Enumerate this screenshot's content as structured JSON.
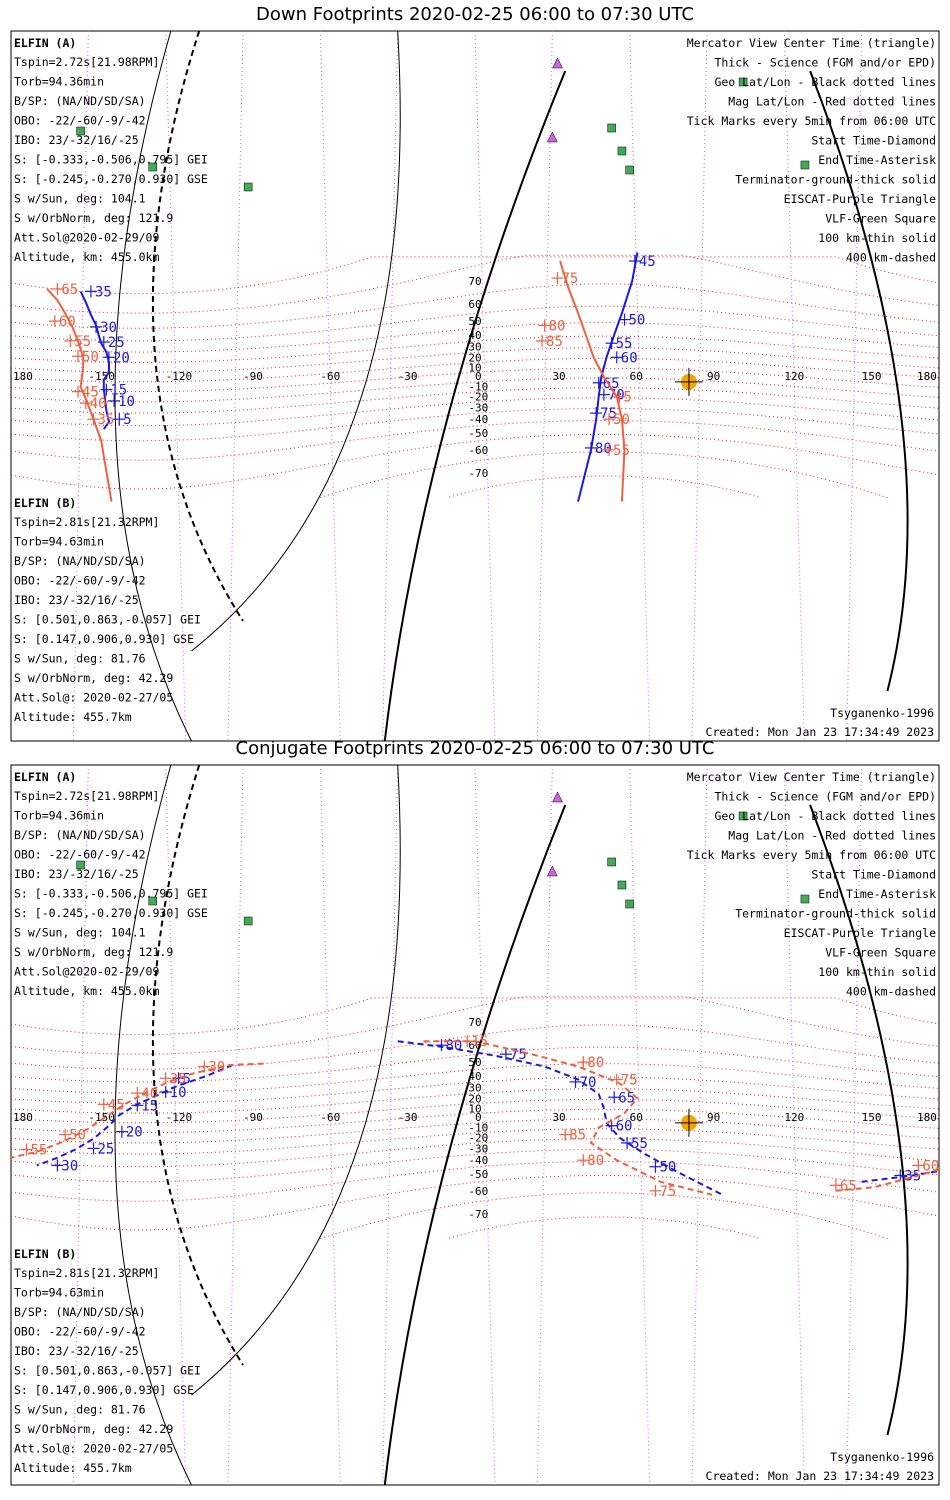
{
  "colors": {
    "elfin_a": "#1a1adc",
    "elfin_b": "#ee6040",
    "geo_grid": "#000000",
    "mag_grid": "#dd2222",
    "eiscat": "#cc66dd",
    "vlf": "#44aa55",
    "sun": "#f2a400",
    "coast": "#b8b8b8"
  },
  "panels": [
    {
      "title": "Down Footprints 2020-02-25 06:00 to 07:30 UTC",
      "kind": "down",
      "elfin_a": {
        "name": "ELFIN (A)",
        "lines": [
          "Tspin=2.72s[21.98RPM]",
          "Torb=94.36min",
          "B/SP: (NA/ND/SD/SA)",
          "OBO: -22/-60/-9/-42",
          "IBO: 23/-32/16/-25",
          "S: [-0.333,-0.506,0.795] GEI",
          "S: [-0.245,-0.270,0.930] GSE",
          "S w/Sun, deg: 104.1",
          "S w/OrbNorm, deg: 121.9",
          "Att.Sol@2020-02-29/09",
          "Altitude, km: 455.0km"
        ]
      },
      "elfin_b": {
        "name": "ELFIN (B)",
        "lines": [
          "Tspin=2.81s[21.32RPM]",
          "Torb=94.63min",
          "B/SP: (NA/ND/SD/SA)",
          "OBO: -22/-60/-9/-42",
          "IBO: 23/-32/16/-25",
          "S: [0.501,0.863,-0.057] GEI",
          "S: [0.147,0.906,0.930] GSE",
          "S w/Sun, deg: 81.76",
          "S w/OrbNorm, deg: 42.29",
          "Att.Sol@: 2020-02-27/05",
          "Altitude: 455.7km"
        ]
      },
      "legend": [
        "Mercator View Center Time (triangle)",
        "Thick - Science (FGM and/or EPD)",
        "Geo Lat/Lon - Black dotted lines",
        "Mag Lat/Lon - Red dotted lines",
        "Tick Marks every 5min from 06:00 UTC",
        "Start Time-Diamond",
        "End Time-Asterisk",
        "Terminator-ground-thick solid",
        "EISCAT-Purple Triangle",
        "VLF-Green Square",
        "100 km-thin solid",
        "400 km-dashed"
      ],
      "model": "Tsyganenko-1996",
      "created": "Created: Mon Jan 23 17:34:49 2023",
      "lon_ticks": [
        "180",
        "-150",
        "-120",
        "-90",
        "-60",
        "-30",
        "0",
        "30",
        "60",
        "90",
        "120",
        "150",
        "180"
      ],
      "lat_ticks": [
        "70",
        "60",
        "50",
        "40",
        "30",
        "20",
        "10",
        "-10",
        "-20",
        "-30",
        "-40",
        "-50",
        "-60",
        "-70"
      ]
    },
    {
      "title": "Conjugate Footprints 2020-02-25 06:00 to 07:30 UTC",
      "kind": "conj",
      "elfin_a": {
        "name": "ELFIN (A)",
        "lines": [
          "Tspin=2.72s[21.98RPM]",
          "Torb=94.36min",
          "B/SP: (NA/ND/SD/SA)",
          "OBO: -22/-60/-9/-42",
          "IBO: 23/-32/16/-25",
          "S: [-0.333,-0.506,0.795] GEI",
          "S: [-0.245,-0.270,0.930] GSE",
          "S w/Sun, deg: 104.1",
          "S w/OrbNorm, deg: 121.9",
          "Att.Sol@2020-02-29/09",
          "Altitude, km: 455.0km"
        ]
      },
      "elfin_b": {
        "name": "ELFIN (B)",
        "lines": [
          "Tspin=2.81s[21.32RPM]",
          "Torb=94.63min",
          "B/SP: (NA/ND/SD/SA)",
          "OBO: -22/-60/-9/-42",
          "IBO: 23/-32/16/-25",
          "S: [0.501,0.863,-0.057] GEI",
          "S: [0.147,0.906,0.930] GSE",
          "S w/Sun, deg: 81.76",
          "S w/OrbNorm, deg: 42.29",
          "Att.Sol@: 2020-02-27/05",
          "Altitude: 455.7km"
        ]
      },
      "legend": [
        "Mercator View Center Time (triangle)",
        "Thick - Science (FGM and/or EPD)",
        "Geo Lat/Lon - Black dotted lines",
        "Mag Lat/Lon - Red dotted lines",
        "Tick Marks every 5min from 06:00 UTC",
        "Start Time-Diamond",
        "End Time-Asterisk",
        "Terminator-ground-thick solid",
        "EISCAT-Purple Triangle",
        "VLF-Green Square",
        "100 km-thin solid",
        "400 km-dashed"
      ],
      "model": "Tsyganenko-1996",
      "created": "Created: Mon Jan 23 17:34:49 2023",
      "lon_ticks": [
        "180",
        "-150",
        "-120",
        "-90",
        "-60",
        "-30",
        "0",
        "30",
        "60",
        "90",
        "120",
        "150",
        "180"
      ],
      "lat_ticks": [
        "70",
        "60",
        "50",
        "40",
        "30",
        "20",
        "10",
        "-10",
        "-20",
        "-30",
        "-40",
        "-50",
        "-60",
        "-70"
      ]
    }
  ],
  "chart_data": [
    {
      "type": "map",
      "title": "Down Footprints 2020-02-25 06:00 to 07:30 UTC",
      "projection": "Mercator",
      "xlim": [
        -180,
        180
      ],
      "ylim": [
        -78,
        78
      ],
      "series": [
        {
          "name": "ELFIN (A)",
          "color": "#1a1adc",
          "style": "solid",
          "points": [
            [
              -144,
              -47.5
            ],
            [
              -142,
              -42
            ],
            [
              -143,
              -33
            ],
            [
              -144,
              -12
            ],
            [
              -144,
              -3
            ],
            [
              -142,
              5
            ],
            [
              -142,
              15
            ],
            [
              -143,
              25
            ],
            [
              -145,
              33
            ],
            [
              -146,
              40
            ],
            [
              -147,
              47
            ],
            [
              -149,
              54
            ],
            [
              -151,
              61
            ],
            [
              -153,
              66
            ]
          ],
          "labels": [
            [
              "35",
              -149,
              66
            ],
            [
              "30",
              -147,
              46
            ],
            [
              "25",
              -144,
              34
            ],
            [
              "20",
              -142,
              20
            ],
            [
              "15",
              -143,
              -13
            ],
            [
              "10",
              -140,
              -24
            ],
            [
              "5",
              -138,
              -40
            ]
          ]
        },
        {
          "name": "ELFIN (A) dayside",
          "color": "#1a1adc",
          "style": "solid",
          "points": [
            [
              40,
              -78
            ],
            [
              45,
              -60
            ],
            [
              47,
              -40
            ],
            [
              48,
              -20
            ],
            [
              49,
              0
            ],
            [
              51,
              20
            ],
            [
              54,
              40
            ],
            [
              57,
              55
            ],
            [
              61,
              70
            ],
            [
              63,
              78
            ]
          ],
          "labels": [
            [
              "45",
              62,
              76
            ],
            [
              "50",
              58,
              51
            ],
            [
              "55",
              53,
              33
            ],
            [
              "60",
              55,
              20
            ],
            [
              "65",
              48,
              -6
            ],
            [
              "70",
              50,
              -18
            ],
            [
              "75",
              47,
              -35
            ],
            [
              "80",
              45,
              -59
            ]
          ]
        },
        {
          "name": "ELFIN (B)",
          "color": "#ee6040",
          "style": "solid",
          "points": [
            [
              -141,
              -78
            ],
            [
              -145,
              -55
            ],
            [
              -148,
              -40
            ],
            [
              -151,
              -22
            ],
            [
              -153,
              -10
            ],
            [
              -152,
              10
            ],
            [
              -152,
              20
            ],
            [
              -154,
              35
            ],
            [
              -156,
              45
            ],
            [
              -159,
              55
            ],
            [
              -162,
              62
            ],
            [
              -166,
              67
            ]
          ],
          "labels": [
            [
              "65",
              -162,
              67
            ],
            [
              "60",
              -163,
              50
            ],
            [
              "55",
              -157,
              35
            ],
            [
              "50",
              -154,
              21
            ],
            [
              "45",
              -154,
              -15
            ],
            [
              "40",
              -151,
              -26
            ],
            [
              "35",
              -148,
              -40
            ]
          ]
        },
        {
          "name": "ELFIN (B) dayside",
          "color": "#ee6040",
          "style": "solid",
          "points": [
            [
              57,
              -78
            ],
            [
              58,
              -60
            ],
            [
              57,
              -40
            ],
            [
              55,
              -20
            ],
            [
              50,
              0
            ],
            [
              46,
              20
            ],
            [
              43,
              40
            ],
            [
              40,
              55
            ],
            [
              36,
              68
            ],
            [
              33,
              76
            ]
          ],
          "labels": [
            [
              "75",
              32,
              71
            ],
            [
              "80",
              27,
              47
            ],
            [
              "85",
              26,
              35
            ],
            [
              "5",
              56,
              -20
            ],
            [
              "50",
              52,
              -40
            ],
            [
              "55",
              52,
              -60
            ]
          ]
        }
      ]
    },
    {
      "type": "map",
      "title": "Conjugate Footprints 2020-02-25 06:00 to 07:30 UTC",
      "projection": "Mercator",
      "xlim": [
        -180,
        180
      ],
      "ylim": [
        -78,
        78
      ],
      "series": [
        {
          "name": "ELFIN (A)",
          "color": "#1a1adc",
          "style": "dashed",
          "points": [
            [
              -94,
              48
            ],
            [
              -104,
              40
            ],
            [
              -116,
              31
            ],
            [
              -124,
              22
            ],
            [
              -131,
              14
            ],
            [
              -138,
              3
            ],
            [
              -142,
              -8
            ],
            [
              -148,
              -21
            ],
            [
              -155,
              -31
            ],
            [
              -162,
              -38
            ],
            [
              -170,
              -44
            ]
          ],
          "labels": [
            [
              "5",
              -115,
              38
            ],
            [
              "10",
              -120,
              26
            ],
            [
              "15",
              -131,
              13
            ],
            [
              "20",
              -137,
              -14
            ],
            [
              "25",
              -148,
              -30
            ],
            [
              "30",
              -162,
              -44
            ]
          ]
        },
        {
          "name": "ELFIN (A) conj dayside",
          "color": "#1a1adc",
          "style": "dashed",
          "points": [
            [
              -30,
              62
            ],
            [
              -12,
              59
            ],
            [
              8,
              54
            ],
            [
              27,
              47
            ],
            [
              40,
              37
            ],
            [
              48,
              24
            ],
            [
              50,
              10
            ],
            [
              51,
              -5
            ],
            [
              56,
              -20
            ],
            [
              66,
              -35
            ],
            [
              80,
              -50
            ],
            [
              96,
              -62
            ]
          ],
          "labels": [
            [
              "80",
              -13,
              60
            ],
            [
              "75",
              12,
              55
            ],
            [
              "70",
              39,
              35
            ],
            [
              "65",
              54,
              21
            ],
            [
              "60",
              53,
              -8
            ],
            [
              "55",
              59,
              -25
            ],
            [
              "50",
              70,
              -45
            ]
          ]
        },
        {
          "name": "ELFIN (A) conj east",
          "color": "#1a1adc",
          "style": "dashed",
          "points": [
            [
              150,
              -55
            ],
            [
              160,
              -53
            ],
            [
              170,
              -51
            ],
            [
              180,
              -48
            ]
          ],
          "labels": [
            [
              "35",
              165,
              -51
            ]
          ]
        },
        {
          "name": "ELFIN (B)",
          "color": "#ee6040",
          "style": "dashed",
          "points": [
            [
              -82,
              49
            ],
            [
              -95,
              48
            ],
            [
              -109,
              42
            ],
            [
              -119,
              35
            ],
            [
              -128,
              25
            ],
            [
              -136,
              14
            ],
            [
              -145,
              -2
            ],
            [
              -150,
              -11
            ],
            [
              -160,
              -24
            ],
            [
              -170,
              -33
            ],
            [
              -180,
              -38
            ]
          ],
          "labels": [
            [
              "30",
              -105,
              47
            ],
            [
              "35",
              -120,
              38
            ],
            [
              "40",
              -131,
              25
            ],
            [
              "45",
              -144,
              14
            ],
            [
              "50",
              -159,
              -17
            ],
            [
              "55",
              -174,
              -31
            ]
          ]
        },
        {
          "name": "ELFIN (B) conj dayside",
          "color": "#ee6040",
          "style": "dashed",
          "points": [
            [
              -20,
              62
            ],
            [
              0,
              62
            ],
            [
              22,
              55
            ],
            [
              40,
              47
            ],
            [
              56,
              34
            ],
            [
              63,
              20
            ],
            [
              58,
              5
            ],
            [
              48,
              -10
            ],
            [
              45,
              -25
            ],
            [
              55,
              -40
            ],
            [
              72,
              -55
            ],
            [
              92,
              -62
            ]
          ],
          "labels": [
            [
              "15",
              -3,
              62
            ],
            [
              "80",
              42,
              50
            ],
            [
              "75",
              55,
              37
            ],
            [
              "85",
              35,
              -17
            ],
            [
              "80",
              42,
              -40
            ],
            [
              "75",
              70,
              -60
            ]
          ]
        },
        {
          "name": "ELFIN (B) conj east",
          "color": "#ee6040",
          "style": "dashed",
          "points": [
            [
              140,
              -60
            ],
            [
              155,
              -58
            ],
            [
              170,
              -52
            ],
            [
              180,
              -47
            ]
          ],
          "labels": [
            [
              "65",
              140,
              -57
            ],
            [
              "60",
              172,
              -44
            ]
          ]
        }
      ]
    }
  ]
}
